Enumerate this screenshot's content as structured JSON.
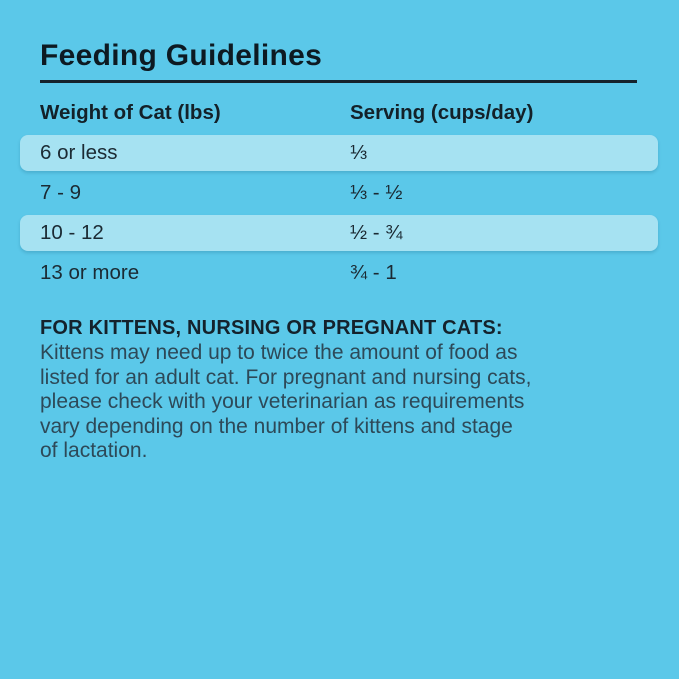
{
  "title": "Feeding Guidelines",
  "colors": {
    "background": "#5bc8e9",
    "row_highlight": "#a6e2f2",
    "heading_text": "#0d1a22",
    "row_text": "#1b2a33",
    "body_text": "#2d4958",
    "divider": "#15232d"
  },
  "table": {
    "columns": [
      "Weight of Cat (lbs)",
      "Serving (cups/day)"
    ],
    "rows": [
      {
        "weight": "6 or less",
        "serving": "⅓",
        "highlighted": true
      },
      {
        "weight": "7 - 9",
        "serving": "⅓ - ½",
        "highlighted": false
      },
      {
        "weight": "10 - 12",
        "serving": "½ - ¾",
        "highlighted": true
      },
      {
        "weight": "13 or more",
        "serving": "¾ - 1",
        "highlighted": false
      }
    ]
  },
  "note": {
    "heading": "FOR KITTENS, NURSING OR PREGNANT CATS:",
    "lines": [
      "Kittens may need up to twice the amount of food as",
      "listed for an adult cat. For pregnant and nursing cats,",
      "please check with your veterinarian as requirements",
      "vary depending on the number of kittens and stage",
      "of lactation."
    ]
  }
}
